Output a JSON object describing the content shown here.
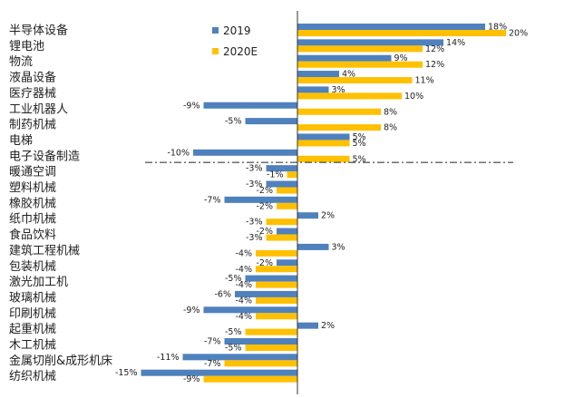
{
  "chart_data": {
    "type": "bar",
    "orientation": "horizontal",
    "categories": [
      "半导体设备",
      "锂电池",
      "物流",
      "液晶设备",
      "医疗器械",
      "工业机器人",
      "制药机械",
      "电梯",
      "电子设备制造",
      "暖通空调",
      "塑料机械",
      "橡胶机械",
      "纸巾机械",
      "食品饮料",
      "建筑工程机械",
      "包装机械",
      "激光加工机",
      "玻璃机械",
      "印刷机械",
      "起重机械",
      "木工机械",
      "金属切削&成形机床",
      "纺织机械"
    ],
    "series": [
      {
        "name": "2019",
        "color": "#4F81BD",
        "values": [
          18,
          14,
          9,
          4,
          3,
          -9,
          -5,
          5,
          -10,
          -3,
          -3,
          -7,
          2,
          -2,
          3,
          -2,
          -5,
          -6,
          -9,
          2,
          -7,
          -11,
          -15
        ]
      },
      {
        "name": "2020E",
        "color": "#FFC000",
        "values": [
          20,
          12,
          12,
          11,
          10,
          8,
          8,
          5,
          5,
          -1,
          -2,
          -2,
          -3,
          -3,
          -4,
          -4,
          -4,
          -4,
          -4,
          -5,
          -5,
          -7,
          -9
        ]
      }
    ],
    "value_labels": {
      "2019": [
        "18%",
        "14%",
        "9%",
        "4%",
        "3%",
        "-9%",
        "-5%",
        "5%",
        "-10%",
        "-3%",
        "-3%",
        "-7%",
        "2%",
        "-2%",
        "3%",
        "-2%",
        "-5%",
        "-6%",
        "-9%",
        "2%",
        "-7%",
        "-11%",
        "-15%"
      ],
      "2020E": [
        "20%",
        "12%",
        "12%",
        "11%",
        "10%",
        "8%",
        "8%",
        "5%",
        "5%",
        "-1%",
        "-2%",
        "-2%",
        "-3%",
        "-3%",
        "-4%",
        "-4%",
        "-4%",
        "-4%",
        "-4%",
        "-5%",
        "-5%",
        "-7%",
        "-9%"
      ]
    },
    "xlim": [
      -16,
      21
    ],
    "legend_position": "top-center",
    "divider": {
      "after_category_index": 8,
      "style": "dash-dot"
    }
  }
}
